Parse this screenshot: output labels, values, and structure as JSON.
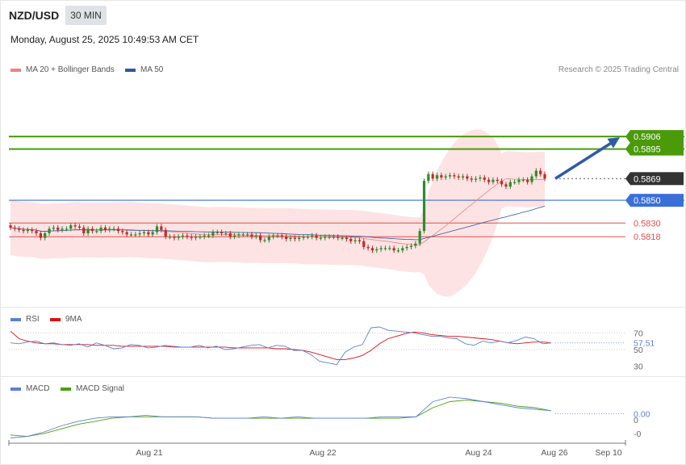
{
  "header": {
    "symbol": "NZD/USD",
    "timeframe": "30 MIN",
    "datetime": "Monday, August 25, 2025 10:49:53 AM CET"
  },
  "legend": {
    "ma20": "MA 20 + Bollinger Bands",
    "ma50": "MA 50",
    "rsi": "RSI",
    "rsi_ma": "9MA",
    "macd": "MACD",
    "macd_signal": "MACD Signal"
  },
  "credit": "Research © 2025 Trading Central",
  "colors": {
    "ma20": "#f08080",
    "ma50": "#2e5a9c",
    "band_fill": "#fde0e0",
    "candle_up": "#2e8b2e",
    "candle_down": "#c62828",
    "resistance": "#4a9a0a",
    "support_blue": "#3a6fd8",
    "support_red": "#e05050",
    "price_tag": "#333333",
    "arrow": "#2e5aa8",
    "rsi": "#5b7fd6",
    "rsi_ma": "#e01010",
    "macd": "#5b7fd6",
    "macd_signal": "#4aa00a"
  },
  "chart_data": [
    {
      "type": "candlestick",
      "title": "NZD/USD 30 MIN",
      "ylim": [
        0.576,
        0.5955
      ],
      "x_ticks": [
        "Aug 21",
        "Aug 22",
        "Aug 24",
        "Aug 26",
        "Sep 10"
      ],
      "levels": [
        {
          "value": 0.5906,
          "label": "0.5906",
          "kind": "resistance"
        },
        {
          "value": 0.5895,
          "label": "0.5895",
          "kind": "resistance"
        },
        {
          "value": 0.5869,
          "label": "0.5869",
          "kind": "last"
        },
        {
          "value": 0.585,
          "label": "0.5850",
          "kind": "pivot"
        },
        {
          "value": 0.583,
          "label": "0.5830",
          "kind": "support"
        },
        {
          "value": 0.5818,
          "label": "0.5818",
          "kind": "support"
        }
      ],
      "forecast_arrow": {
        "from": 0.5869,
        "to": 0.5906
      },
      "close": [
        0.5826,
        0.5825,
        0.5824,
        0.5823,
        0.5824,
        0.5823,
        0.5821,
        0.5817,
        0.5821,
        0.5825,
        0.5826,
        0.5824,
        0.5825,
        0.5825,
        0.5828,
        0.5827,
        0.5826,
        0.5821,
        0.5825,
        0.5823,
        0.5823,
        0.5826,
        0.5824,
        0.5825,
        0.5825,
        0.5823,
        0.5822,
        0.582,
        0.582,
        0.582,
        0.5821,
        0.5822,
        0.582,
        0.5822,
        0.5827,
        0.5824,
        0.5818,
        0.5818,
        0.5817,
        0.5818,
        0.5819,
        0.5818,
        0.5817,
        0.5818,
        0.5818,
        0.5819,
        0.5819,
        0.5822,
        0.5822,
        0.5821,
        0.5821,
        0.5818,
        0.5819,
        0.582,
        0.582,
        0.582,
        0.5818,
        0.5819,
        0.5815,
        0.5815,
        0.5818,
        0.5819,
        0.5819,
        0.5818,
        0.5816,
        0.5817,
        0.5816,
        0.5817,
        0.5818,
        0.5818,
        0.5819,
        0.5817,
        0.5817,
        0.5818,
        0.5818,
        0.5818,
        0.5817,
        0.5817,
        0.5816,
        0.5814,
        0.5815,
        0.5814,
        0.5809,
        0.5808,
        0.5806,
        0.5807,
        0.5808,
        0.5808,
        0.5808,
        0.5806,
        0.5806,
        0.5808,
        0.5809,
        0.581,
        0.5812,
        0.5823,
        0.5867,
        0.5873,
        0.5869,
        0.5872,
        0.587,
        0.5871,
        0.5872,
        0.5871,
        0.587,
        0.5871,
        0.5869,
        0.5868,
        0.5869,
        0.587,
        0.5868,
        0.5866,
        0.5868,
        0.5867,
        0.5864,
        0.5862,
        0.5866,
        0.5866,
        0.5868,
        0.5868,
        0.5866,
        0.5871,
        0.5876,
        0.5873,
        0.5869
      ]
    },
    {
      "type": "line",
      "title": "RSI",
      "x_ticks": [
        "Aug 21",
        "Aug 22",
        "Aug 24",
        "Aug 26",
        "Sep 10"
      ],
      "y_ticks": [
        30,
        50,
        70
      ],
      "ylim": [
        22,
        78
      ],
      "current": "57.51",
      "series": [
        {
          "name": "RSI",
          "values": [
            58,
            57,
            59,
            60,
            57,
            58,
            56,
            55,
            57,
            53,
            58,
            55,
            51,
            52,
            56,
            55,
            52,
            53,
            55,
            54,
            53,
            53,
            55,
            52,
            54,
            50,
            51,
            53,
            55,
            56,
            52,
            55,
            54,
            49,
            49,
            44,
            36,
            34,
            32,
            47,
            53,
            56,
            76,
            77,
            73,
            72,
            71,
            70,
            68,
            66,
            66,
            64,
            63,
            57,
            55,
            60,
            58,
            60,
            58,
            61,
            65,
            63,
            57,
            58
          ]
        },
        {
          "name": "9MA",
          "values": [
            72,
            63,
            60,
            58,
            57,
            57,
            56,
            56,
            56,
            56,
            55,
            55,
            55,
            54,
            54,
            54,
            54,
            54,
            54,
            53,
            53,
            53,
            53,
            53,
            53,
            53,
            52,
            52,
            52,
            52,
            52,
            51,
            51,
            50,
            49,
            47,
            44,
            41,
            38,
            38,
            40,
            43,
            49,
            57,
            63,
            66,
            69,
            71,
            70,
            68,
            67,
            66,
            66,
            65,
            64,
            63,
            62,
            60,
            58,
            57,
            58,
            59,
            59,
            58
          ]
        }
      ]
    },
    {
      "type": "line",
      "title": "MACD",
      "x_ticks": [
        "Aug 21",
        "Aug 22",
        "Aug 24",
        "Aug 26",
        "Sep 10"
      ],
      "y_ticks": [
        "0",
        "-0"
      ],
      "ylim": [
        -0.0016,
        0.0016
      ],
      "current": "0.00",
      "series": [
        {
          "name": "MACD",
          "values": [
            -0.0012,
            -0.0011,
            -0.0008,
            -0.0004,
            -0.0001,
            0.0001,
            0.0002,
            0.0002,
            0.0003,
            0.0002,
            0.0002,
            0.0002,
            0.0001,
            0.0001,
            0.0001,
            0.0002,
            0.0001,
            0.0002,
            0.0001,
            0.0001,
            0.0001,
            0.0001,
            0.0002,
            0.0002,
            0.0002,
            0.0012,
            0.0015,
            0.0014,
            0.0012,
            0.001,
            0.0008,
            0.0007,
            0.0006
          ]
        },
        {
          "name": "MACD Signal",
          "values": [
            -0.001,
            -0.0011,
            -0.0009,
            -0.0006,
            -0.0003,
            -0.0001,
            0.0001,
            0.0002,
            0.0002,
            0.0002,
            0.0002,
            0.0002,
            0.0001,
            0.0001,
            0.0001,
            0.0001,
            0.0001,
            0.0001,
            0.0001,
            0.0001,
            0.0001,
            0.0001,
            0.0001,
            0.0001,
            0.0002,
            0.0008,
            0.0012,
            0.0013,
            0.0012,
            0.0011,
            0.0009,
            0.0008,
            0.0006
          ]
        }
      ]
    }
  ]
}
